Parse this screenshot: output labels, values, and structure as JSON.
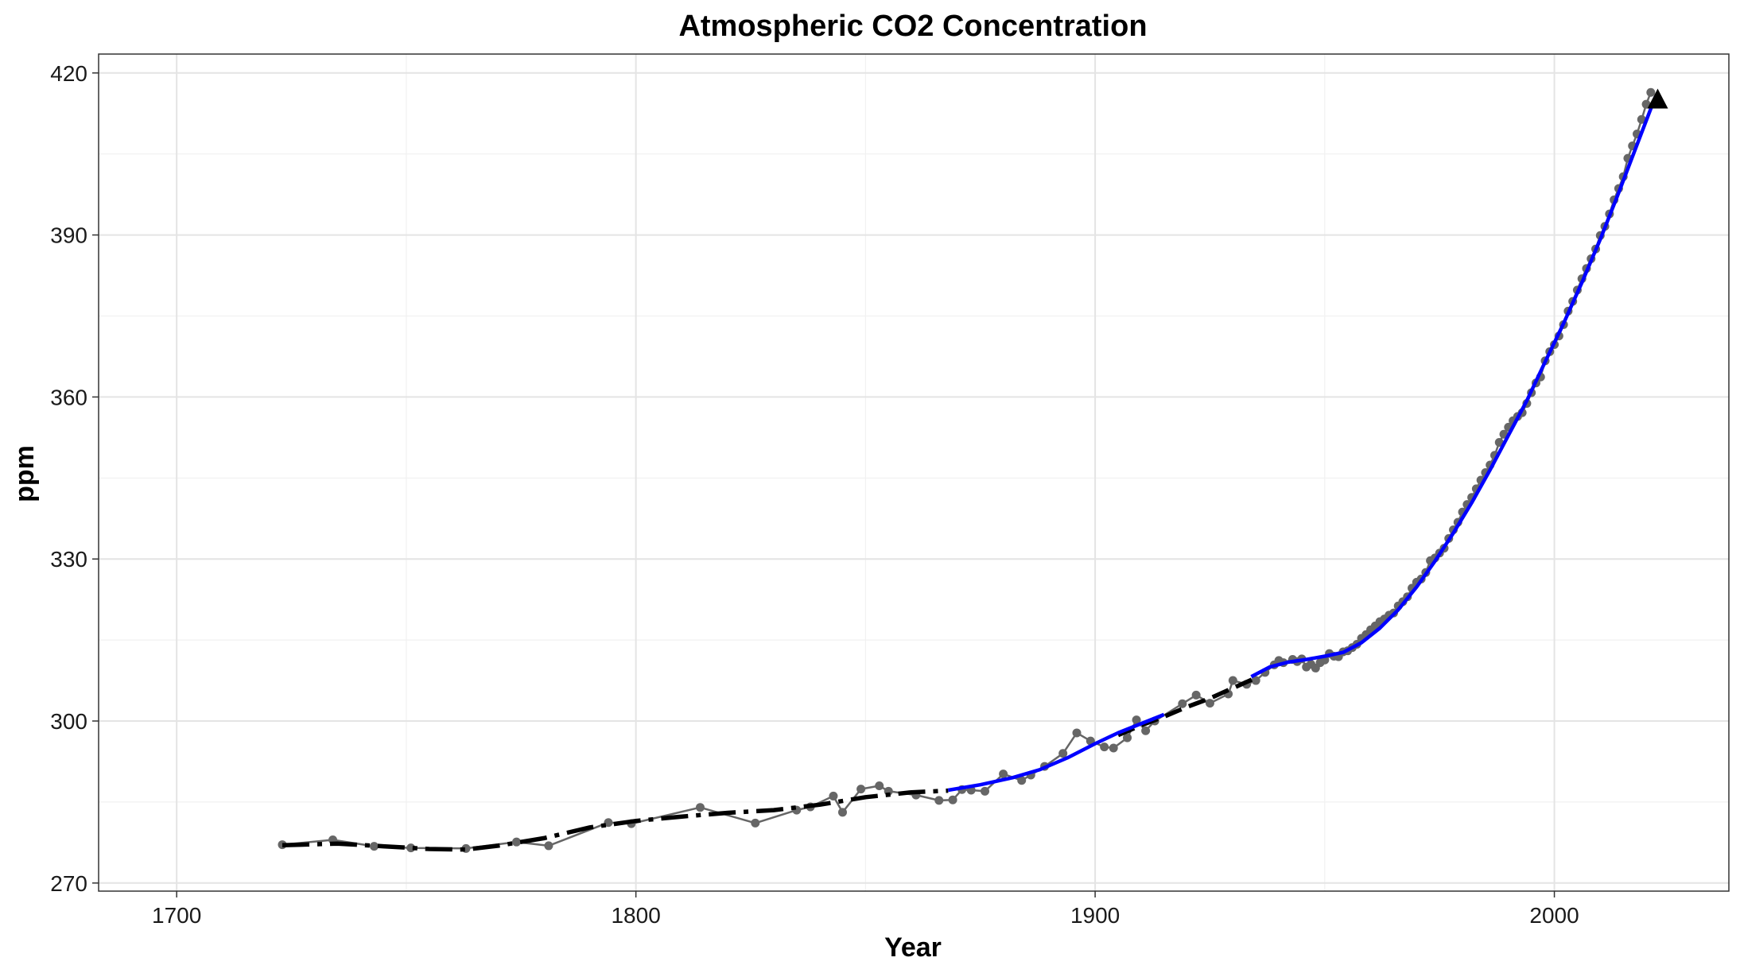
{
  "chart_data": {
    "type": "line",
    "title": "Atmospheric CO2 Concentration",
    "xlabel": "Year",
    "ylabel": "ppm",
    "xlim": [
      1683,
      2038
    ],
    "ylim": [
      268.5,
      423.5
    ],
    "x_ticks": [
      1700,
      1800,
      1900,
      2000
    ],
    "x_tick_labels": [
      "1700",
      "1800",
      "1900",
      "2000"
    ],
    "y_ticks": [
      270,
      300,
      330,
      360,
      390,
      420
    ],
    "y_tick_labels": [
      "270",
      "300",
      "330",
      "360",
      "390",
      "420"
    ],
    "grid": true,
    "legend": "none",
    "colors": {
      "observations": "#666666",
      "historic_trend": "#000000",
      "modern_trend": "#0000ff",
      "arrow": "#000000",
      "grid_major": "#e4e4e4",
      "grid_minor": "#f1f1f1",
      "panel_border": "#333333"
    },
    "series": [
      {
        "style": "points-connected",
        "x": [
          1723,
          1734,
          1743,
          1751,
          1763,
          1774,
          1781,
          1794,
          1799,
          1814,
          1826,
          1835,
          1838,
          1843,
          1845,
          1849,
          1853,
          1855,
          1861,
          1866,
          1869,
          1871,
          1873,
          1876,
          1880,
          1884,
          1886,
          1889,
          1893,
          1896,
          1899,
          1902,
          1904,
          1907,
          1909,
          1911,
          1913,
          1919,
          1922,
          1925,
          1929,
          1930,
          1933,
          1935,
          1937,
          1939,
          1940,
          1941,
          1943,
          1944,
          1945,
          1946,
          1947,
          1948,
          1949,
          1950,
          1951,
          1952,
          1953,
          1954,
          1955,
          1956,
          1957,
          1958,
          1959,
          1960,
          1961,
          1962,
          1963,
          1964,
          1965,
          1966,
          1967,
          1968,
          1969,
          1970,
          1971,
          1972,
          1973,
          1974,
          1975,
          1976,
          1977,
          1978,
          1979,
          1980,
          1981,
          1982,
          1983,
          1984,
          1985,
          1986,
          1987,
          1988,
          1989,
          1990,
          1991,
          1992,
          1993,
          1994,
          1995,
          1996,
          1997,
          1998,
          1999,
          2000,
          2001,
          2002,
          2003,
          2004,
          2005,
          2006,
          2007,
          2008,
          2009,
          2010,
          2011,
          2012,
          2013,
          2014,
          2015,
          2016,
          2017,
          2018,
          2019,
          2020,
          2021
        ],
        "y": [
          277.1,
          278.0,
          276.8,
          276.5,
          276.4,
          277.6,
          276.9,
          281.2,
          281.0,
          284.0,
          281.1,
          283.5,
          284.1,
          286.1,
          283.1,
          287.4,
          288.0,
          287.0,
          286.3,
          285.3,
          285.4,
          287.3,
          287.2,
          287.0,
          290.2,
          289.0,
          290.0,
          291.6,
          294.0,
          297.8,
          296.3,
          295.2,
          295.0,
          296.9,
          300.2,
          298.2,
          300.0,
          303.2,
          304.8,
          303.3,
          305.0,
          307.5,
          306.8,
          307.5,
          309.0,
          310.4,
          311.2,
          310.8,
          311.4,
          311.0,
          311.5,
          310.0,
          310.5,
          309.8,
          310.8,
          311.3,
          312.5,
          312.0,
          311.9,
          312.8,
          313.0,
          313.6,
          314.2,
          315.3,
          316.0,
          316.9,
          317.6,
          318.4,
          318.9,
          319.6,
          320.0,
          321.3,
          322.1,
          323.0,
          324.6,
          325.7,
          326.3,
          327.5,
          329.7,
          330.2,
          331.1,
          332.0,
          333.8,
          335.4,
          336.8,
          338.7,
          340.1,
          341.4,
          343.0,
          344.6,
          346.0,
          347.4,
          349.2,
          351.6,
          353.1,
          354.4,
          355.6,
          356.4,
          357.1,
          358.8,
          360.8,
          362.6,
          363.7,
          366.7,
          368.4,
          369.7,
          371.3,
          373.4,
          375.9,
          377.7,
          379.8,
          381.9,
          383.8,
          385.6,
          387.4,
          389.9,
          391.6,
          393.9,
          396.5,
          398.6,
          400.8,
          404.2,
          406.5,
          408.7,
          411.4,
          414.2,
          416.4
        ]
      },
      {
        "style": "dashdot-trend",
        "x": [
          1723,
          1735,
          1745,
          1755,
          1763,
          1770,
          1780,
          1790,
          1800,
          1810,
          1820,
          1830,
          1840,
          1850,
          1860,
          1868
        ],
        "y": [
          277.0,
          277.3,
          276.8,
          276.3,
          276.2,
          276.9,
          278.3,
          280.3,
          281.5,
          282.3,
          283.0,
          283.5,
          284.5,
          285.9,
          286.8,
          287.1
        ]
      },
      {
        "style": "dashed-trend",
        "x": [
          1905,
          1910,
          1915,
          1920,
          1925,
          1930,
          1935
        ],
        "y": [
          297.4,
          299.2,
          300.8,
          302.6,
          304.2,
          306.1,
          308.0
        ]
      },
      {
        "style": "solid-trend",
        "x": [
          1868,
          1875,
          1882,
          1888,
          1894,
          1900,
          1905,
          1910,
          1915
        ],
        "y": [
          287.2,
          288.2,
          289.5,
          291.0,
          293.2,
          295.8,
          297.8,
          299.5,
          301.2
        ]
      },
      {
        "style": "solid-trend",
        "x": [
          1934,
          1938,
          1942,
          1946,
          1950,
          1954,
          1958,
          1962,
          1966,
          1970,
          1974,
          1978,
          1982,
          1986,
          1990,
          1994,
          1998,
          2002,
          2006,
          2010,
          2014,
          2018,
          2022
        ],
        "y": [
          308.2,
          310.0,
          310.9,
          311.4,
          312.0,
          312.7,
          314.5,
          317.2,
          320.6,
          324.8,
          329.6,
          334.8,
          340.4,
          346.5,
          352.9,
          359.3,
          366.5,
          373.6,
          381.2,
          389.2,
          397.8,
          406.7,
          415.6
        ]
      }
    ],
    "arrow": {
      "x": 2022.5,
      "y": 416.5,
      "direction": "up"
    }
  }
}
